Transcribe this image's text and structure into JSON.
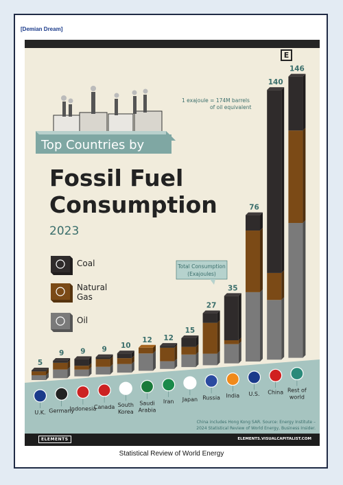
{
  "header": {
    "link_text": "[Demian Dream]"
  },
  "poster": {
    "banner_text": "Top Countries by",
    "title_line1": "Fossil Fuel",
    "title_line2": "Consumption",
    "year": "2023",
    "note_line1": "1 exajoule = 174M barrels",
    "note_line2": "of oil equivalent",
    "callout_line1": "Total Consumption",
    "callout_line2": "(Exajoules)",
    "source_line1": "China includes Hong Kong SAR. Source: Energy Institute –",
    "source_line2": "2024 Statistical Review of World Energy, Business Insider.",
    "footer_left": "ELEMENTS",
    "footer_right": "ELEMENTS.VISUALCAPITALIST.COM",
    "badge": "E"
  },
  "legend": [
    {
      "name": "Coal",
      "color": "#2f2b2b",
      "icon": "coal-icon"
    },
    {
      "name": "Natural\nGas",
      "color": "#7b4a16",
      "icon": "flame-icon"
    },
    {
      "name": "Oil",
      "color": "#7a7a7a",
      "icon": "oil-drop-icon"
    }
  ],
  "caption": "Statistical Review of World Energy",
  "chart_data": {
    "type": "bar",
    "stacked": true,
    "title": "Top Countries by Fossil Fuel Consumption",
    "subtitle": "2023",
    "ylabel": "Total Consumption (Exajoules)",
    "categories": [
      "U.K.",
      "Germany",
      "Indonesia",
      "Canada",
      "South Korea",
      "Saudi Arabia",
      "Iran",
      "Japan",
      "Russia",
      "India",
      "U.S.",
      "China",
      "Rest of world"
    ],
    "totals": [
      5,
      9,
      9,
      9,
      10,
      12,
      12,
      15,
      27,
      35,
      76,
      140,
      146
    ],
    "series": [
      {
        "name": "Oil",
        "color": "#7a7a7a",
        "values": [
          2.5,
          4.5,
          3.5,
          4,
          4.5,
          9,
          4,
          6.5,
          6,
          10,
          36,
          31,
          70
        ]
      },
      {
        "name": "Natural Gas",
        "color": "#7b4a16",
        "values": [
          2,
          3.5,
          2,
          4,
          3,
          3,
          7,
          4,
          16,
          2,
          32,
          14,
          48
        ]
      },
      {
        "name": "Coal",
        "color": "#2f2b2b",
        "values": [
          0.5,
          1,
          3.5,
          1,
          2.5,
          0,
          1,
          4.5,
          5,
          23,
          8,
          95,
          28
        ]
      }
    ],
    "ylim": [
      0,
      146
    ]
  }
}
